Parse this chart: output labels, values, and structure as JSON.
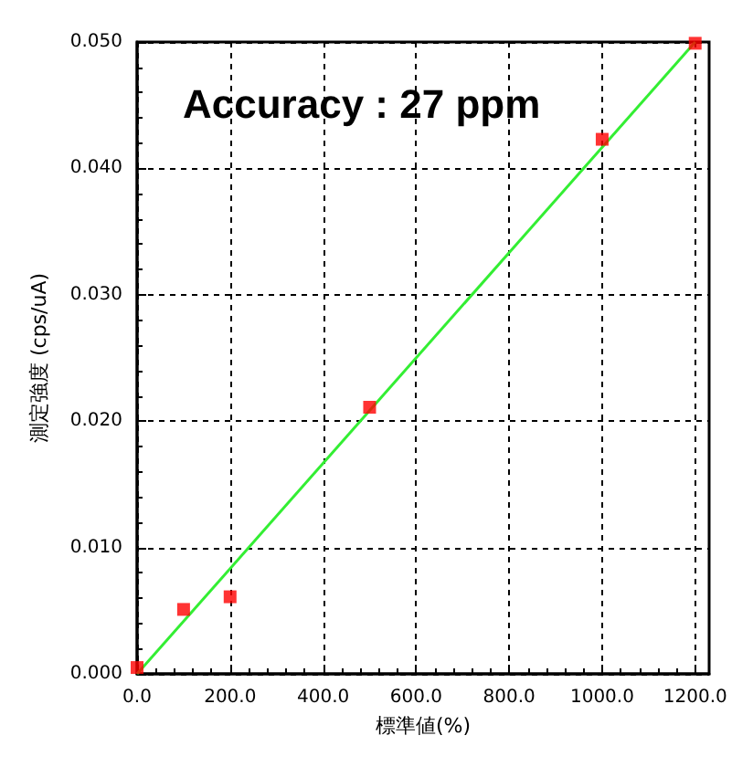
{
  "chart_data": {
    "type": "scatter",
    "xlabel": "標準値(%)",
    "ylabel": "測定強度 (cps/uA)",
    "annotations": [
      "Accuracy : 27 ppm"
    ],
    "x": [
      0,
      100,
      200,
      500,
      1000,
      1200
    ],
    "series": [
      {
        "color": "#ff0000",
        "marker": "square",
        "values": [
          0.0005,
          0.0051,
          0.0061,
          0.0211,
          0.0423,
          0.0499
        ]
      },
      {
        "type": "line",
        "color": "#33ee33",
        "x": [
          0,
          1200
        ],
        "values": [
          0,
          0.05
        ],
        "marker": "none",
        "line_style": "solid"
      }
    ],
    "xlim": [
      0,
      1230
    ],
    "xticks": [
      {
        "value": 0,
        "label": "0.0"
      },
      {
        "value": 200,
        "label": "200.0"
      },
      {
        "value": 400,
        "label": "400.0"
      },
      {
        "value": 600,
        "label": "600.0"
      },
      {
        "value": 800,
        "label": "800.0"
      },
      {
        "value": 1000,
        "label": "1000.0"
      },
      {
        "value": 1200,
        "label": "1200.0"
      }
    ],
    "ylim": [
      0,
      0.05
    ],
    "yticks": [
      {
        "value": 0,
        "label": "0.000"
      },
      {
        "value": 0.01,
        "label": "0.010"
      },
      {
        "value": 0.02,
        "label": "0.020"
      },
      {
        "value": 0.03,
        "label": "0.030"
      },
      {
        "value": 0.04,
        "label": "0.040"
      },
      {
        "value": 0.05,
        "label": "0.050"
      }
    ],
    "grid": true
  }
}
